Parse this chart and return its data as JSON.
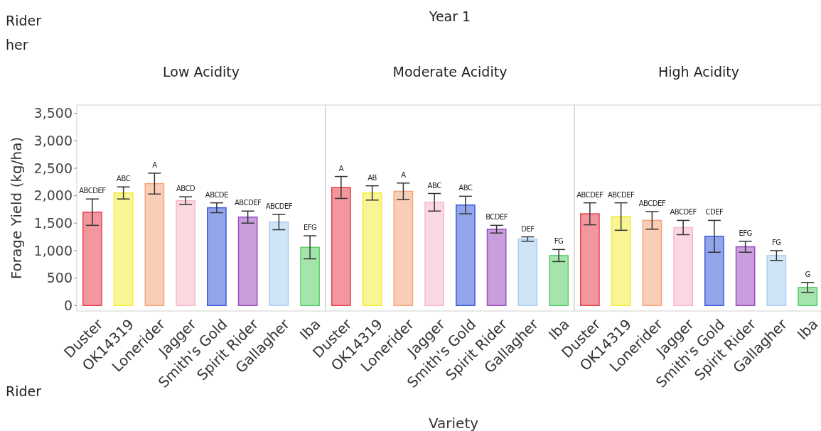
{
  "chart_data": [
    {
      "type": "bar",
      "subtitle": "Low Acidity",
      "ylabel": "Forage Yield (kg/ha)",
      "annotations": [
        "Rider",
        "her",
        "Rider"
      ],
      "categories": [
        "Duster",
        "OK14319",
        "Lonerider",
        "Jagger",
        "Smith's Gold",
        "Spirit Rider",
        "Gallagher",
        "Iba"
      ],
      "values": [
        1700,
        2050,
        2220,
        1910,
        1780,
        1610,
        1520,
        1060
      ],
      "errors": [
        240,
        110,
        190,
        70,
        90,
        110,
        140,
        210
      ],
      "value_labels": [
        "ABCDEF",
        "ABC",
        "A",
        "ABCD",
        "ABCDE",
        "ABCDEF",
        "ABCDEF",
        "EFG"
      ],
      "colors": [
        "#e8414f",
        "#f2ec3c",
        "#f4a57a",
        "#f7b8c8",
        "#3b5bd9",
        "#9b4fc0",
        "#a9cdf0",
        "#5bd06a"
      ],
      "ylim": [
        -100,
        3650
      ],
      "yticks": [
        {
          "value": 0,
          "label": "0"
        },
        {
          "value": 500,
          "label": "500"
        },
        {
          "value": 1000,
          "label": "1,000"
        },
        {
          "value": 1500,
          "label": "1,500"
        },
        {
          "value": 2000,
          "label": "2,000"
        },
        {
          "value": 2500,
          "label": "2,500"
        },
        {
          "value": 3000,
          "label": "3,000"
        },
        {
          "value": 3500,
          "label": "3,500"
        }
      ],
      "grid": false
    },
    {
      "type": "bar",
      "title": "Year 1",
      "subtitle": "Moderate Acidity",
      "xlabel": "Variety",
      "categories": [
        "Duster",
        "OK14319",
        "Lonerider",
        "Jagger",
        "Smith's Gold",
        "Spirit Rider",
        "Gallagher",
        "Iba"
      ],
      "values": [
        2150,
        2050,
        2080,
        1880,
        1830,
        1390,
        1210,
        910
      ],
      "errors": [
        200,
        130,
        150,
        160,
        160,
        70,
        40,
        110
      ],
      "value_labels": [
        "A",
        "AB",
        "A",
        "ABC",
        "ABC",
        "BCDEF",
        "DEF",
        "FG"
      ],
      "colors": [
        "#e8414f",
        "#f2ec3c",
        "#f4a57a",
        "#f7b8c8",
        "#3b5bd9",
        "#9b4fc0",
        "#a9cdf0",
        "#5bd06a"
      ],
      "ylim": [
        -100,
        3650
      ],
      "tick_labels": "x",
      "grid": false
    },
    {
      "type": "bar",
      "subtitle": "High Acidity",
      "categories": [
        "Duster",
        "OK14319",
        "Lonerider",
        "Jagger",
        "Smith's Gold",
        "Spirit Rider",
        "Gallagher",
        "Iba"
      ],
      "values": [
        1670,
        1620,
        1550,
        1420,
        1260,
        1070,
        910,
        330
      ],
      "errors": [
        200,
        250,
        160,
        130,
        290,
        100,
        90,
        90
      ],
      "value_labels": [
        "ABCDEF",
        "ABCDEF",
        "ABCDEF",
        "ABCDEF",
        "CDEF",
        "EFG",
        "FG",
        "G"
      ],
      "colors": [
        "#e8414f",
        "#f2ec3c",
        "#f4a57a",
        "#f7b8c8",
        "#3b5bd9",
        "#9b4fc0",
        "#a9cdf0",
        "#5bd06a"
      ],
      "ylim": [
        -100,
        3650
      ],
      "tick_labels": "x",
      "grid": false
    }
  ]
}
